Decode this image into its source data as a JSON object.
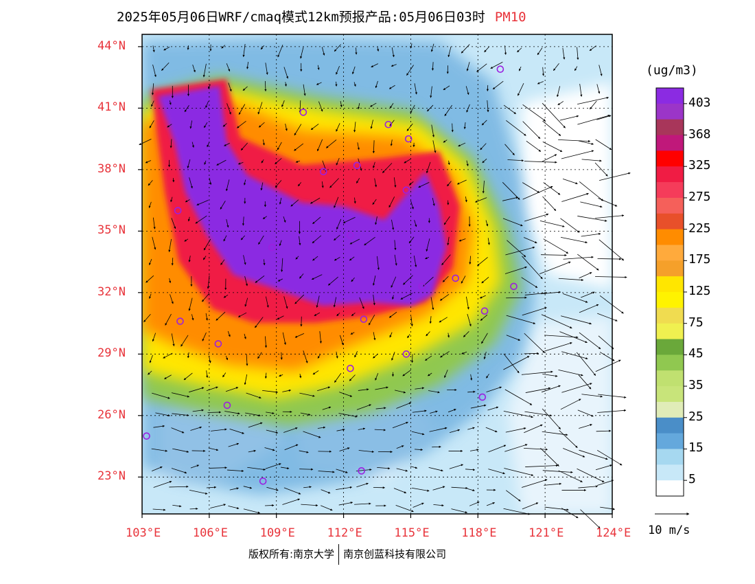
{
  "header": {
    "title": "2025年05月06日WRF/cmaq模式12km预报产品:05月06日03时",
    "pollutant": "PM10"
  },
  "map": {
    "lat_labels": [
      "44°N",
      "41°N",
      "38°N",
      "35°N",
      "32°N",
      "29°N",
      "26°N",
      "23°N"
    ],
    "lon_labels": [
      "103°E",
      "106°E",
      "109°E",
      "112°E",
      "115°E",
      "118°E",
      "121°E",
      "124°E"
    ],
    "lat_values": [
      44,
      41,
      38,
      35,
      32,
      29,
      26,
      23
    ],
    "lon_values": [
      103,
      106,
      109,
      112,
      115,
      118,
      121,
      124
    ],
    "lon_range": [
      103,
      124
    ],
    "lat_range": [
      21.2,
      44.6
    ],
    "grid": "dotted",
    "station_markers": [
      {
        "lon": 119.0,
        "lat": 42.9
      },
      {
        "lon": 110.2,
        "lat": 40.8
      },
      {
        "lon": 114.0,
        "lat": 40.2
      },
      {
        "lon": 114.9,
        "lat": 39.5
      },
      {
        "lon": 111.1,
        "lat": 37.9
      },
      {
        "lon": 112.6,
        "lat": 38.2
      },
      {
        "lon": 114.8,
        "lat": 37.0
      },
      {
        "lon": 104.6,
        "lat": 36.0
      },
      {
        "lon": 112.3,
        "lat": 34.8
      },
      {
        "lon": 108.8,
        "lat": 34.2
      },
      {
        "lon": 117.0,
        "lat": 32.7
      },
      {
        "lon": 115.5,
        "lat": 32.3
      },
      {
        "lon": 119.6,
        "lat": 32.3
      },
      {
        "lon": 118.3,
        "lat": 31.1
      },
      {
        "lon": 104.7,
        "lat": 30.6
      },
      {
        "lon": 112.9,
        "lat": 30.7
      },
      {
        "lon": 106.4,
        "lat": 29.5
      },
      {
        "lon": 114.8,
        "lat": 29.0
      },
      {
        "lon": 112.3,
        "lat": 28.3
      },
      {
        "lon": 106.8,
        "lat": 26.5
      },
      {
        "lon": 118.2,
        "lat": 26.9
      },
      {
        "lon": 103.2,
        "lat": 25.0
      },
      {
        "lon": 112.8,
        "lat": 23.3
      },
      {
        "lon": 108.4,
        "lat": 22.8
      }
    ]
  },
  "legend": {
    "unit": "(ug/m3)",
    "labels": [
      "403",
      "368",
      "325",
      "275",
      "225",
      "175",
      "125",
      "75",
      "45",
      "35",
      "25",
      "15",
      "5"
    ],
    "colors": [
      "#8b2be2",
      "#9b35c8",
      "#a8365a",
      "#c0187a",
      "#ff0000",
      "#f01c44",
      "#f53c5a",
      "#f5605a",
      "#e8502a",
      "#ff8c00",
      "#ffaa3c",
      "#f5a02a",
      "#ffe600",
      "#fff300",
      "#f0dc50",
      "#f0f050",
      "#6aa83a",
      "#90c850",
      "#c0e070",
      "#c8e47a",
      "#e0ecb8",
      "#4a8ec8",
      "#64a8dc",
      "#a6d8f0",
      "#c8e8f8",
      "#ffffff"
    ]
  },
  "wind_scale": {
    "label": "10 m/s"
  },
  "footer": {
    "copyright_left": "版权所有:南京大学",
    "copyright_right": "南京创蓝科技有限公司"
  }
}
